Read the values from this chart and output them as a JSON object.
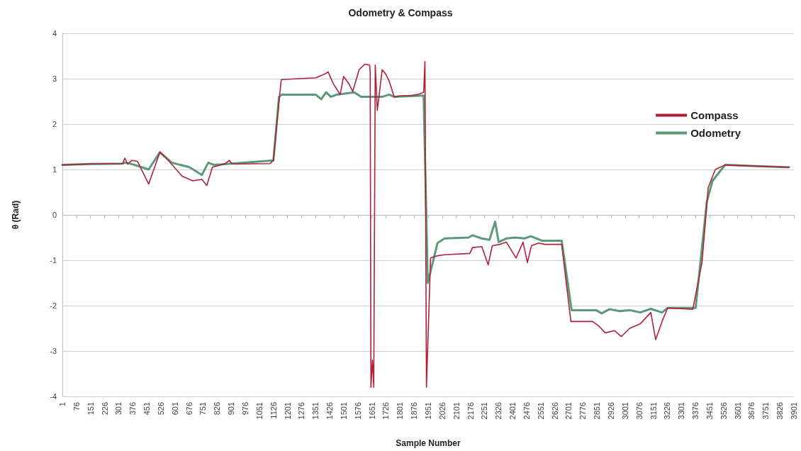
{
  "chart_data": {
    "type": "line",
    "title": "Odometry & Compass",
    "xlabel": "Sample Number",
    "ylabel": "θ (Rad)",
    "xlim": [
      1,
      3901
    ],
    "xticks": [
      1,
      76,
      151,
      226,
      301,
      376,
      451,
      526,
      601,
      676,
      751,
      826,
      901,
      976,
      1051,
      1126,
      1201,
      1276,
      1351,
      1426,
      1501,
      1576,
      1651,
      1726,
      1801,
      1876,
      1951,
      2026,
      2101,
      2176,
      2251,
      2326,
      2401,
      2476,
      2551,
      2626,
      2701,
      2776,
      2851,
      2926,
      3001,
      3076,
      3151,
      3226,
      3301,
      3376,
      3451,
      3526,
      3601,
      3676,
      3751,
      3826,
      3901
    ],
    "ylim": [
      -4,
      4
    ],
    "yticks": [
      -4,
      -3,
      -2,
      -1,
      0,
      1,
      2,
      3,
      4
    ],
    "grid": "y",
    "legend": "top right",
    "marker": "none",
    "line_style": "solid",
    "series": [
      {
        "name": "Compass",
        "color": "#b0203a",
        "x": [
          1,
          154,
          323,
          334,
          349,
          371,
          401,
          461,
          521,
          566,
          640,
          696,
          745,
          771,
          801,
          865,
          891,
          906,
          1108,
          1126,
          1156,
          1168,
          1257,
          1351,
          1399,
          1418,
          1444,
          1482,
          1500,
          1527,
          1549,
          1583,
          1613,
          1639,
          1642,
          1646,
          1654,
          1661,
          1669,
          1680,
          1706,
          1725,
          1743,
          1770,
          1799,
          1856,
          1893,
          1927,
          1934,
          1942,
          1964,
          2001,
          2039,
          2173,
          2188,
          2237,
          2271,
          2293,
          2334,
          2368,
          2420,
          2457,
          2480,
          2502,
          2540,
          2573,
          2663,
          2712,
          2828,
          2861,
          2895,
          2944,
          2981,
          3026,
          3082,
          3138,
          3164,
          3198,
          3228,
          3362,
          3411,
          3444,
          3482,
          3534,
          3852,
          3875
        ],
        "values": [
          1.1,
          1.12,
          1.13,
          1.25,
          1.12,
          1.2,
          1.18,
          0.68,
          1.38,
          1.2,
          0.85,
          0.75,
          0.78,
          0.65,
          1.05,
          1.12,
          1.2,
          1.12,
          1.13,
          1.2,
          2.5,
          2.98,
          3.0,
          3.02,
          3.1,
          3.15,
          2.9,
          2.65,
          3.05,
          2.9,
          2.72,
          3.2,
          3.32,
          3.3,
          3.15,
          -3.8,
          -3.2,
          -3.8,
          3.3,
          2.3,
          3.2,
          3.1,
          2.95,
          2.6,
          2.62,
          2.63,
          2.65,
          2.7,
          3.38,
          -3.8,
          -0.95,
          -0.9,
          -0.88,
          -0.85,
          -0.72,
          -0.7,
          -1.1,
          -0.68,
          -0.65,
          -0.6,
          -0.95,
          -0.6,
          -1.05,
          -0.68,
          -0.62,
          -0.65,
          -0.65,
          -2.35,
          -2.35,
          -2.45,
          -2.6,
          -2.55,
          -2.68,
          -2.5,
          -2.4,
          -2.15,
          -2.75,
          -2.35,
          -2.05,
          -2.08,
          -1.05,
          0.6,
          1.0,
          1.1,
          1.05,
          1.05
        ]
      },
      {
        "name": "Odometry",
        "color": "#5a9a78",
        "x": [
          1,
          154,
          323,
          334,
          371,
          461,
          521,
          584,
          678,
          745,
          779,
          809,
          902,
          1126,
          1156,
          1171,
          1351,
          1381,
          1407,
          1433,
          1463,
          1557,
          1594,
          1706,
          1743,
          1770,
          1927,
          1949,
          2001,
          2039,
          2166,
          2188,
          2237,
          2278,
          2308,
          2327,
          2368,
          2416,
          2465,
          2499,
          2558,
          2663,
          2716,
          2846,
          2876,
          2917,
          2973,
          3026,
          3082,
          3138,
          3198,
          3228,
          3377,
          3437,
          3467,
          3534,
          3852,
          3875
        ],
        "values": [
          1.1,
          1.12,
          1.13,
          1.15,
          1.12,
          1.0,
          1.38,
          1.15,
          1.05,
          0.88,
          1.15,
          1.1,
          1.13,
          1.2,
          2.6,
          2.65,
          2.65,
          2.55,
          2.7,
          2.6,
          2.65,
          2.7,
          2.6,
          2.6,
          2.65,
          2.6,
          2.63,
          -1.5,
          -0.62,
          -0.52,
          -0.5,
          -0.45,
          -0.52,
          -0.55,
          -0.15,
          -0.6,
          -0.52,
          -0.5,
          -0.52,
          -0.47,
          -0.57,
          -0.57,
          -2.1,
          -2.1,
          -2.17,
          -2.08,
          -2.12,
          -2.1,
          -2.15,
          -2.07,
          -2.15,
          -2.05,
          -2.05,
          0.3,
          0.75,
          1.1,
          1.05,
          1.05
        ]
      }
    ]
  }
}
